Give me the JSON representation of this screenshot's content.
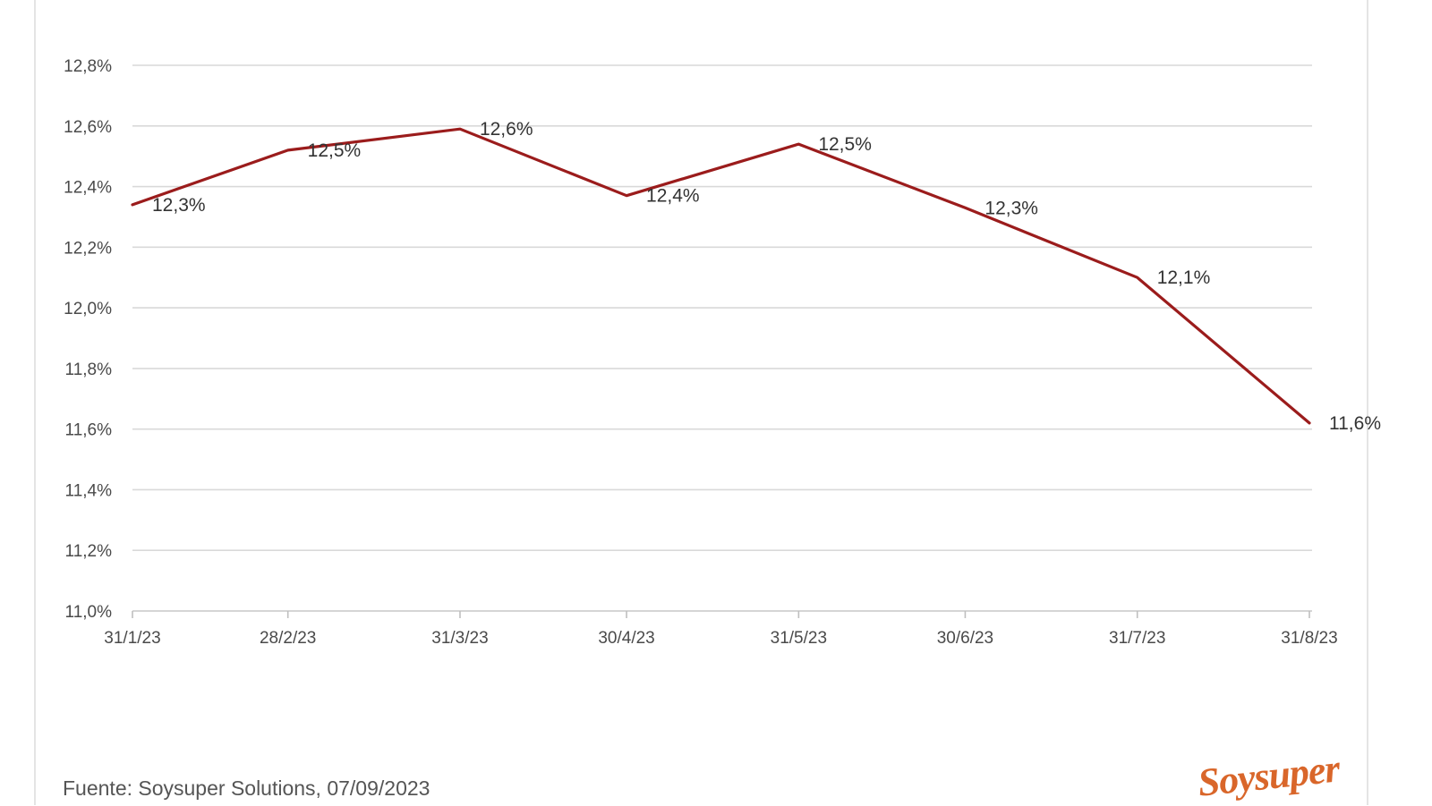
{
  "source_text": "Fuente: Soysuper Solutions, 07/09/2023",
  "logo_text": "Soysuper",
  "colors": {
    "line": "#9b1c1c",
    "grid": "#d9d9d9",
    "logo": "#d9662a"
  },
  "chart_data": {
    "type": "line",
    "title": "",
    "xlabel": "",
    "ylabel": "",
    "categories": [
      "31/1/23",
      "28/2/23",
      "31/3/23",
      "30/4/23",
      "31/5/23",
      "30/6/23",
      "31/7/23",
      "31/8/23"
    ],
    "x_days": [
      0,
      28,
      59,
      89,
      120,
      150,
      181,
      212
    ],
    "values": [
      12.34,
      12.52,
      12.59,
      12.37,
      12.54,
      12.33,
      12.1,
      11.62
    ],
    "data_labels": [
      "12,3%",
      "12,5%",
      "12,6%",
      "12,4%",
      "12,5%",
      "12,3%",
      "12,1%",
      "11,6%"
    ],
    "ylim": [
      11.0,
      12.8
    ],
    "yticks": [
      11.0,
      11.2,
      11.4,
      11.6,
      11.8,
      12.0,
      12.2,
      12.4,
      12.6,
      12.8
    ],
    "ytick_labels": [
      "11,0%",
      "11,2%",
      "11,4%",
      "11,6%",
      "11,8%",
      "12,0%",
      "12,2%",
      "12,4%",
      "12,6%",
      "12,8%"
    ],
    "grid": true,
    "legend": "none"
  }
}
